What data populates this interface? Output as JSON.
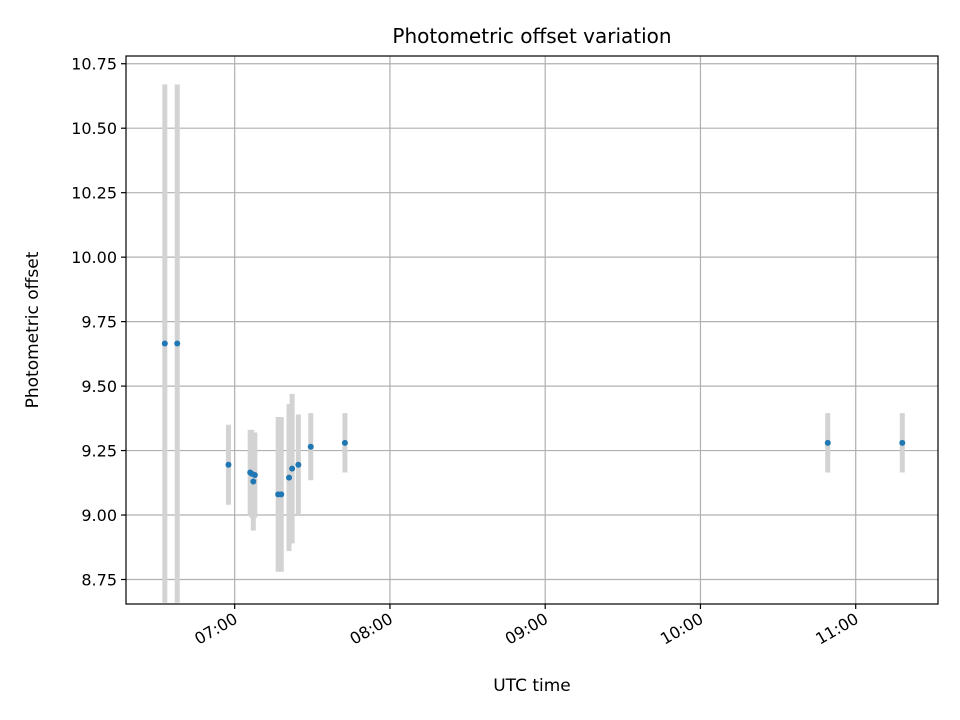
{
  "chart_data": {
    "type": "scatter",
    "title": "Photometric offset variation",
    "xlabel": "UTC time",
    "ylabel": "Photometric offset",
    "grid": true,
    "xlim_hours": [
      6.3,
      11.53
    ],
    "ylim": [
      8.655,
      10.78
    ],
    "y_ticks": [
      8.75,
      9.0,
      9.25,
      9.5,
      9.75,
      10.0,
      10.25,
      10.5,
      10.75
    ],
    "y_tick_labels": [
      "8.75",
      "9.00",
      "9.25",
      "9.50",
      "9.75",
      "10.00",
      "10.25",
      "10.50",
      "10.75"
    ],
    "x_ticks_hours": [
      7,
      8,
      9,
      10,
      11
    ],
    "x_tick_labels": [
      "07:00",
      "08:00",
      "09:00",
      "10:00",
      "11:00"
    ],
    "colors": {
      "point": "#1f77b4",
      "errorbar": "#d3d3d3",
      "grid": "#b0b0b0"
    },
    "points": [
      {
        "t": 6.55,
        "y": 9.665,
        "err": 1.005
      },
      {
        "t": 6.63,
        "y": 9.665,
        "err": 1.005
      },
      {
        "t": 6.96,
        "y": 9.195,
        "err": 0.155
      },
      {
        "t": 7.1,
        "y": 9.165,
        "err": 0.165
      },
      {
        "t": 7.11,
        "y": 9.16,
        "err": 0.17
      },
      {
        "t": 7.12,
        "y": 9.13,
        "err": 0.19
      },
      {
        "t": 7.13,
        "y": 9.155,
        "err": 0.165
      },
      {
        "t": 7.28,
        "y": 9.08,
        "err": 0.3
      },
      {
        "t": 7.3,
        "y": 9.08,
        "err": 0.3
      },
      {
        "t": 7.35,
        "y": 9.145,
        "err": 0.285
      },
      {
        "t": 7.37,
        "y": 9.18,
        "err": 0.29
      },
      {
        "t": 7.41,
        "y": 9.195,
        "err": 0.195
      },
      {
        "t": 7.49,
        "y": 9.265,
        "err": 0.13
      },
      {
        "t": 7.71,
        "y": 9.28,
        "err": 0.115
      },
      {
        "t": 10.82,
        "y": 9.28,
        "err": 0.115
      },
      {
        "t": 11.3,
        "y": 9.28,
        "err": 0.115
      }
    ]
  }
}
